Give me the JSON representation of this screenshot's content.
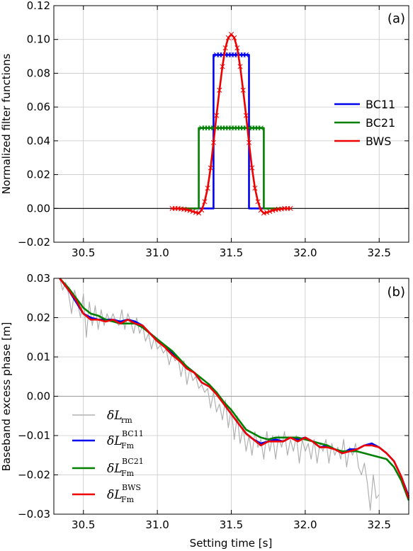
{
  "chart_data": [
    {
      "type": "line",
      "panel_label": "(a)",
      "xlabel": "",
      "ylabel": "Normalized filter functions",
      "xlim": [
        30.3,
        32.7
      ],
      "ylim": [
        -0.02,
        0.12
      ],
      "xticks": [
        "30.5",
        "31.0",
        "31.5",
        "32.0",
        "32.5"
      ],
      "xtick_values": [
        30.5,
        31.0,
        31.5,
        32.0,
        32.5
      ],
      "yticks": [
        "−0.02",
        "0.00",
        "0.02",
        "0.04",
        "0.06",
        "0.08",
        "0.10",
        "0.12"
      ],
      "ytick_values": [
        -0.02,
        0.0,
        0.02,
        0.04,
        0.06,
        0.08,
        0.1,
        0.12
      ],
      "grid": true,
      "legend_position": "center-right",
      "zero_line": true,
      "series": [
        {
          "name": "BC11",
          "color": "#0000ee",
          "x": [
            31.1,
            31.38,
            31.38,
            31.4,
            31.42,
            31.44,
            31.46,
            31.48,
            31.5,
            31.52,
            31.54,
            31.56,
            31.58,
            31.6,
            31.62,
            31.62,
            31.9
          ],
          "y": [
            0,
            0,
            0.0909,
            0.0909,
            0.0909,
            0.0909,
            0.0909,
            0.0909,
            0.0909,
            0.0909,
            0.0909,
            0.0909,
            0.0909,
            0.0909,
            0.0909,
            0,
            0
          ],
          "markers_x": [
            31.4,
            31.42,
            31.44,
            31.46,
            31.48,
            31.5,
            31.52,
            31.54,
            31.56,
            31.58,
            31.6
          ],
          "markers_y": [
            0.0909,
            0.0909,
            0.0909,
            0.0909,
            0.0909,
            0.0909,
            0.0909,
            0.0909,
            0.0909,
            0.0909,
            0.0909
          ]
        },
        {
          "name": "BC21",
          "color": "#008000",
          "x": [
            31.1,
            31.28,
            31.28,
            31.72,
            31.72,
            31.9
          ],
          "y": [
            0,
            0,
            0.0476,
            0.0476,
            0,
            0
          ],
          "markers_x": [
            31.3,
            31.32,
            31.34,
            31.36,
            31.38,
            31.4,
            31.42,
            31.44,
            31.46,
            31.48,
            31.5,
            31.52,
            31.54,
            31.56,
            31.58,
            31.6,
            31.62,
            31.64,
            31.66,
            31.68,
            31.7
          ],
          "markers_y": [
            0.0476,
            0.0476,
            0.0476,
            0.0476,
            0.0476,
            0.0476,
            0.0476,
            0.0476,
            0.0476,
            0.0476,
            0.0476,
            0.0476,
            0.0476,
            0.0476,
            0.0476,
            0.0476,
            0.0476,
            0.0476,
            0.0476,
            0.0476,
            0.0476
          ]
        },
        {
          "name": "BWS",
          "color": "#ee0000",
          "x": [
            31.1,
            31.12,
            31.14,
            31.16,
            31.18,
            31.2,
            31.22,
            31.24,
            31.26,
            31.28,
            31.3,
            31.32,
            31.34,
            31.36,
            31.38,
            31.4,
            31.42,
            31.44,
            31.46,
            31.48,
            31.5,
            31.52,
            31.54,
            31.56,
            31.58,
            31.6,
            31.62,
            31.64,
            31.66,
            31.68,
            31.7,
            31.72,
            31.74,
            31.76,
            31.78,
            31.8,
            31.82,
            31.84,
            31.86,
            31.88,
            31.9
          ],
          "y": [
            0.0,
            0.0,
            0.0,
            -0.0003,
            -0.0005,
            -0.0008,
            -0.0012,
            -0.0018,
            -0.0024,
            -0.0028,
            -0.001,
            0.004,
            0.012,
            0.024,
            0.039,
            0.055,
            0.07,
            0.084,
            0.095,
            0.101,
            0.103,
            0.101,
            0.095,
            0.084,
            0.07,
            0.055,
            0.039,
            0.024,
            0.012,
            0.004,
            -0.001,
            -0.0028,
            -0.0024,
            -0.0018,
            -0.0012,
            -0.0008,
            -0.0005,
            -0.0003,
            0.0,
            0.0,
            0.0
          ]
        }
      ]
    },
    {
      "type": "line",
      "panel_label": "(b)",
      "xlabel": "Setting time [s]",
      "ylabel": "Baseband excess phase [m]",
      "xlim": [
        30.3,
        32.7
      ],
      "ylim": [
        -0.03,
        0.03
      ],
      "xticks": [
        "30.5",
        "31.0",
        "31.5",
        "32.0",
        "32.5"
      ],
      "xtick_values": [
        30.5,
        31.0,
        31.5,
        32.0,
        32.5
      ],
      "yticks": [
        "−0.03",
        "−0.02",
        "−0.01",
        "0.00",
        "0.01",
        "0.02",
        "0.03"
      ],
      "ytick_values": [
        -0.03,
        -0.02,
        -0.01,
        0.0,
        0.01,
        0.02,
        0.03
      ],
      "grid": true,
      "legend_position": "lower-left",
      "zero_line": true,
      "series": [
        {
          "name": "δL_rm",
          "color": "#b0b0b0",
          "x_start": 30.34,
          "x_step": 0.02,
          "y": [
            0.03,
            0.027,
            0.029,
            0.026,
            0.021,
            0.027,
            0.024,
            0.02,
            0.026,
            0.015,
            0.024,
            0.018,
            0.023,
            0.017,
            0.022,
            0.018,
            0.021,
            0.019,
            0.021,
            0.019,
            0.018,
            0.022,
            0.017,
            0.021,
            0.019,
            0.016,
            0.02,
            0.016,
            0.018,
            0.014,
            0.016,
            0.012,
            0.015,
            0.012,
            0.013,
            0.011,
            0.012,
            0.008,
            0.011,
            0.009,
            0.01,
            0.005,
            0.009,
            0.003,
            0.007,
            0.004,
            0.005,
            0.002,
            0.003,
            0.001,
            0.002,
            -0.003,
            0.001,
            -0.004,
            -0.002,
            -0.006,
            -0.001,
            -0.008,
            -0.003,
            -0.011,
            -0.005,
            -0.012,
            -0.008,
            -0.014,
            -0.01,
            -0.015,
            -0.009,
            -0.013,
            -0.011,
            -0.016,
            -0.009,
            -0.014,
            -0.01,
            -0.016,
            -0.01,
            -0.013,
            -0.009,
            -0.015,
            -0.011,
            -0.014,
            -0.01,
            -0.017,
            -0.011,
            -0.014,
            -0.012,
            -0.016,
            -0.011,
            -0.017,
            -0.012,
            -0.014,
            -0.011,
            -0.017,
            -0.012,
            -0.015,
            -0.013,
            -0.016,
            -0.011,
            -0.018,
            -0.013,
            -0.015,
            -0.012,
            -0.018,
            -0.02,
            -0.017,
            -0.022,
            -0.029,
            -0.02,
            -0.026,
            -0.025
          ]
        },
        {
          "name": "δL_Fm BC11",
          "color": "#0000ee",
          "x": [
            30.34,
            30.4,
            30.45,
            30.5,
            30.55,
            30.6,
            30.65,
            30.7,
            30.75,
            30.8,
            30.85,
            30.9,
            30.95,
            31.0,
            31.05,
            31.1,
            31.15,
            31.2,
            31.25,
            31.3,
            31.35,
            31.4,
            31.45,
            31.5,
            31.55,
            31.6,
            31.65,
            31.7,
            31.75,
            31.8,
            31.85,
            31.9,
            31.95,
            32.0,
            32.05,
            32.1,
            32.15,
            32.2,
            32.25,
            32.3,
            32.35,
            32.4,
            32.45,
            32.5,
            32.55,
            32.6,
            32.65,
            32.7
          ],
          "y": [
            0.03,
            0.027,
            0.024,
            0.021,
            0.02,
            0.0195,
            0.0195,
            0.0195,
            0.019,
            0.0195,
            0.019,
            0.018,
            0.016,
            0.0145,
            0.0125,
            0.011,
            0.009,
            0.0075,
            0.006,
            0.0035,
            0.0025,
            0.001,
            -0.002,
            -0.0045,
            -0.007,
            -0.0095,
            -0.011,
            -0.012,
            -0.0115,
            -0.011,
            -0.0115,
            -0.0105,
            -0.011,
            -0.0105,
            -0.0115,
            -0.013,
            -0.0125,
            -0.0135,
            -0.0145,
            -0.0135,
            -0.0135,
            -0.0125,
            -0.012,
            -0.013,
            -0.0145,
            -0.0165,
            -0.0205,
            -0.0255
          ]
        },
        {
          "name": "δL_Fm BC21",
          "color": "#008000",
          "x": [
            30.34,
            30.4,
            30.45,
            30.5,
            30.55,
            30.6,
            30.65,
            30.7,
            30.75,
            30.8,
            30.85,
            30.9,
            30.95,
            31.0,
            31.05,
            31.1,
            31.15,
            31.2,
            31.25,
            31.3,
            31.35,
            31.4,
            31.45,
            31.5,
            31.55,
            31.6,
            31.65,
            31.7,
            31.75,
            31.8,
            31.85,
            31.9,
            31.95,
            32.0,
            32.05,
            32.1,
            32.15,
            32.2,
            32.25,
            32.3,
            32.35,
            32.4,
            32.45,
            32.5,
            32.55,
            32.6,
            32.65,
            32.7
          ],
          "y": [
            0.03,
            0.0275,
            0.025,
            0.0225,
            0.021,
            0.0205,
            0.0195,
            0.019,
            0.0185,
            0.0185,
            0.0185,
            0.0175,
            0.016,
            0.0145,
            0.013,
            0.0115,
            0.0095,
            0.0075,
            0.006,
            0.0045,
            0.003,
            0.001,
            -0.0015,
            -0.0035,
            -0.006,
            -0.0085,
            -0.0095,
            -0.0105,
            -0.011,
            -0.0105,
            -0.0105,
            -0.0105,
            -0.0105,
            -0.011,
            -0.0115,
            -0.012,
            -0.0125,
            -0.0135,
            -0.014,
            -0.014,
            -0.014,
            -0.0145,
            -0.015,
            -0.0155,
            -0.016,
            -0.018,
            -0.0215,
            -0.0265
          ]
        },
        {
          "name": "δL_Fm BWS",
          "color": "#ee0000",
          "x": [
            30.34,
            30.4,
            30.45,
            30.5,
            30.55,
            30.6,
            30.65,
            30.7,
            30.75,
            30.8,
            30.85,
            30.9,
            30.95,
            31.0,
            31.05,
            31.1,
            31.15,
            31.2,
            31.25,
            31.3,
            31.35,
            31.4,
            31.45,
            31.5,
            31.55,
            31.6,
            31.65,
            31.7,
            31.75,
            31.8,
            31.85,
            31.9,
            31.95,
            32.0,
            32.05,
            32.1,
            32.15,
            32.2,
            32.25,
            32.3,
            32.35,
            32.4,
            32.45,
            32.5,
            32.55,
            32.6,
            32.65,
            32.7
          ],
          "y": [
            0.03,
            0.027,
            0.0245,
            0.021,
            0.0195,
            0.0195,
            0.019,
            0.0195,
            0.0185,
            0.0195,
            0.0185,
            0.018,
            0.016,
            0.014,
            0.0125,
            0.0105,
            0.009,
            0.007,
            0.006,
            0.0035,
            0.0025,
            0.0005,
            -0.002,
            -0.0045,
            -0.007,
            -0.0095,
            -0.011,
            -0.0125,
            -0.0115,
            -0.0115,
            -0.0115,
            -0.0105,
            -0.0115,
            -0.0105,
            -0.0115,
            -0.013,
            -0.013,
            -0.0135,
            -0.0145,
            -0.014,
            -0.0135,
            -0.0125,
            -0.0125,
            -0.013,
            -0.0145,
            -0.0165,
            -0.0205,
            -0.026
          ]
        }
      ]
    }
  ],
  "legend_a": [
    {
      "label": "BC11",
      "color": "#0000ee"
    },
    {
      "label": "BC21",
      "color": "#008000"
    },
    {
      "label": "BWS",
      "color": "#ee0000"
    }
  ],
  "legend_b": [
    {
      "main": "δL",
      "sub": "rm",
      "sup": "",
      "color": "#b0b0b0"
    },
    {
      "main": "δL",
      "sub": "Fm",
      "sup": "BC11",
      "color": "#0000ee"
    },
    {
      "main": "δL",
      "sub": "Fm",
      "sup": "BC21",
      "color": "#008000"
    },
    {
      "main": "δL",
      "sub": "Fm",
      "sup": "BWS",
      "color": "#ee0000"
    }
  ]
}
